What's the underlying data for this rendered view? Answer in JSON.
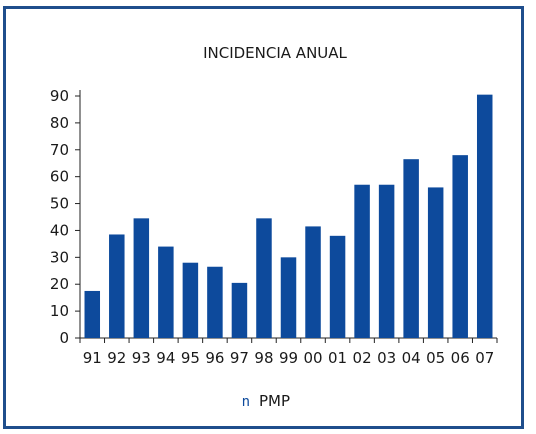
{
  "chart_data": {
    "type": "bar",
    "title": "INCIDENCIA ANUAL",
    "xlabel": "",
    "ylabel": "",
    "categories": [
      "91",
      "92",
      "93",
      "94",
      "95",
      "96",
      "97",
      "98",
      "99",
      "00",
      "01",
      "02",
      "03",
      "04",
      "05",
      "06",
      "07"
    ],
    "series": [
      {
        "name": "PMP",
        "values": [
          17.5,
          38.5,
          44.5,
          34,
          28,
          26.5,
          20.5,
          44.5,
          30,
          41.5,
          38,
          57,
          57,
          66.5,
          56,
          68,
          90.5
        ]
      }
    ],
    "ylim": [
      0,
      90
    ],
    "yticks": [
      0,
      10,
      20,
      30,
      40,
      50,
      60,
      70,
      80,
      90
    ],
    "grid": false,
    "legend": {
      "placement": "bottom-center",
      "marker": "n"
    },
    "colors": {
      "bar": "#0d4a9c",
      "frame": "#1f4e8c",
      "axis": "#222222",
      "text": "#1a1a1a"
    }
  }
}
